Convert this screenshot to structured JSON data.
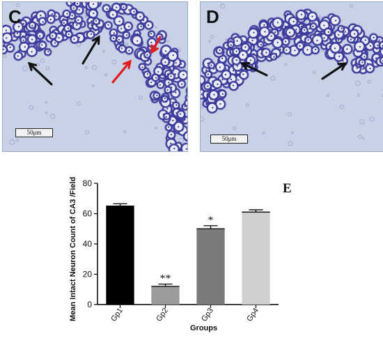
{
  "panels": {
    "c": {
      "letter": "C",
      "scale_label": "50μm"
    },
    "d": {
      "letter": "D",
      "scale_label": "50μm"
    }
  },
  "colors": {
    "tissue_bg": "#c7d2e6",
    "neuron_stain": "#3b3a9e",
    "arrow_black": "#111111",
    "arrow_red": "#e21b1b"
  },
  "chart_data": {
    "type": "bar",
    "panel_label": "E",
    "categories": [
      "Gp1",
      "Gp2",
      "Gp3",
      "Gp4"
    ],
    "values": [
      65,
      12,
      50,
      61
    ],
    "errors": [
      1.5,
      1.5,
      2,
      1.5
    ],
    "significance": [
      "",
      "**",
      "*",
      ""
    ],
    "bar_colors": [
      "#000000",
      "#9b9b9b",
      "#7b7b7b",
      "#cfcfcf"
    ],
    "title": "",
    "xlabel": "Groups",
    "ylabel": "Mean Intact Neuron Count of CA3 /Field",
    "ylim": [
      0,
      80
    ],
    "yticks": [
      0,
      20,
      40,
      60,
      80
    ],
    "grid": false
  }
}
